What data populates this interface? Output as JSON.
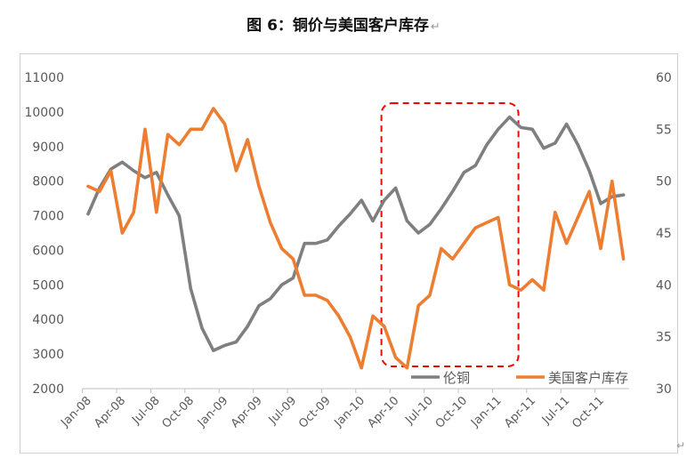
{
  "title": "图 6：铜价与美国客户库存",
  "title_mark": "↵",
  "corner_mark": "↵",
  "chart_data": {
    "type": "line",
    "title": "图 6：铜价与美国客户库存",
    "x_tick_labels": [
      "Jan-08",
      "Apr-08",
      "Jul-08",
      "Oct-08",
      "Jan-09",
      "Apr-09",
      "Jul-09",
      "Oct-09",
      "Jan-10",
      "Apr-10",
      "Jul-10",
      "Oct-10",
      "Jan-11",
      "Apr-11",
      "Jul-11",
      "Oct-11"
    ],
    "x": [
      "Jan-08",
      "Feb-08",
      "Mar-08",
      "Apr-08",
      "May-08",
      "Jun-08",
      "Jul-08",
      "Aug-08",
      "Sep-08",
      "Oct-08",
      "Nov-08",
      "Dec-08",
      "Jan-09",
      "Feb-09",
      "Mar-09",
      "Apr-09",
      "May-09",
      "Jun-09",
      "Jul-09",
      "Aug-09",
      "Sep-09",
      "Oct-09",
      "Nov-09",
      "Dec-09",
      "Jan-10",
      "Feb-10",
      "Mar-10",
      "Apr-10",
      "May-10",
      "Jun-10",
      "Jul-10",
      "Aug-10",
      "Sep-10",
      "Oct-10",
      "Nov-10",
      "Dec-10",
      "Jan-11",
      "Feb-11",
      "Mar-11",
      "Apr-11",
      "May-11",
      "Jun-11",
      "Jul-11",
      "Aug-11",
      "Sep-11",
      "Oct-11",
      "Nov-11",
      "Dec-11"
    ],
    "left_axis": {
      "ylim": [
        2000,
        11000
      ],
      "ticks": [
        2000,
        3000,
        4000,
        5000,
        6000,
        7000,
        8000,
        9000,
        10000,
        11000
      ]
    },
    "right_axis": {
      "ylim": [
        30,
        60
      ],
      "ticks": [
        30,
        35,
        40,
        45,
        50,
        55,
        60
      ]
    },
    "series": [
      {
        "name": "伦铜",
        "axis": "left",
        "color": "#7f7f7f",
        "values": [
          7050,
          7800,
          8350,
          8550,
          8300,
          8100,
          8250,
          7600,
          7000,
          4900,
          3750,
          3100,
          3250,
          3350,
          3800,
          4400,
          4600,
          5000,
          5200,
          6200,
          6200,
          6300,
          6700,
          7050,
          7450,
          6850,
          7450,
          7800,
          6850,
          6500,
          6750,
          7200,
          7700,
          8250,
          8450,
          9050,
          9500,
          9850,
          9550,
          9500,
          8950,
          9100,
          9650,
          9050,
          8300,
          7350,
          7550,
          7600
        ]
      },
      {
        "name": "美国客户库存",
        "axis": "right",
        "color": "#ed7d31",
        "values": [
          49.5,
          49.0,
          51.0,
          45.0,
          47.0,
          55.0,
          47.0,
          54.5,
          53.5,
          55.0,
          55.0,
          57.0,
          55.5,
          51.0,
          54.0,
          49.5,
          46.0,
          43.5,
          42.5,
          39.0,
          39.0,
          38.5,
          37.0,
          35.0,
          32.0,
          37.0,
          36.0,
          33.0,
          32.0,
          38.0,
          39.0,
          43.5,
          42.5,
          44.0,
          45.5,
          46.0,
          46.5,
          40.0,
          39.5,
          40.5,
          39.5,
          47.0,
          44.0,
          46.5,
          49.0,
          43.5,
          50.0,
          42.5
        ]
      }
    ],
    "highlight_box": {
      "from": "Apr-10",
      "to": "Feb-11",
      "color": "#ff0000",
      "style": "dashed"
    },
    "legend": {
      "placement": "bottom-right",
      "entries": [
        "伦铜",
        "美国客户库存"
      ]
    },
    "grid": false
  }
}
